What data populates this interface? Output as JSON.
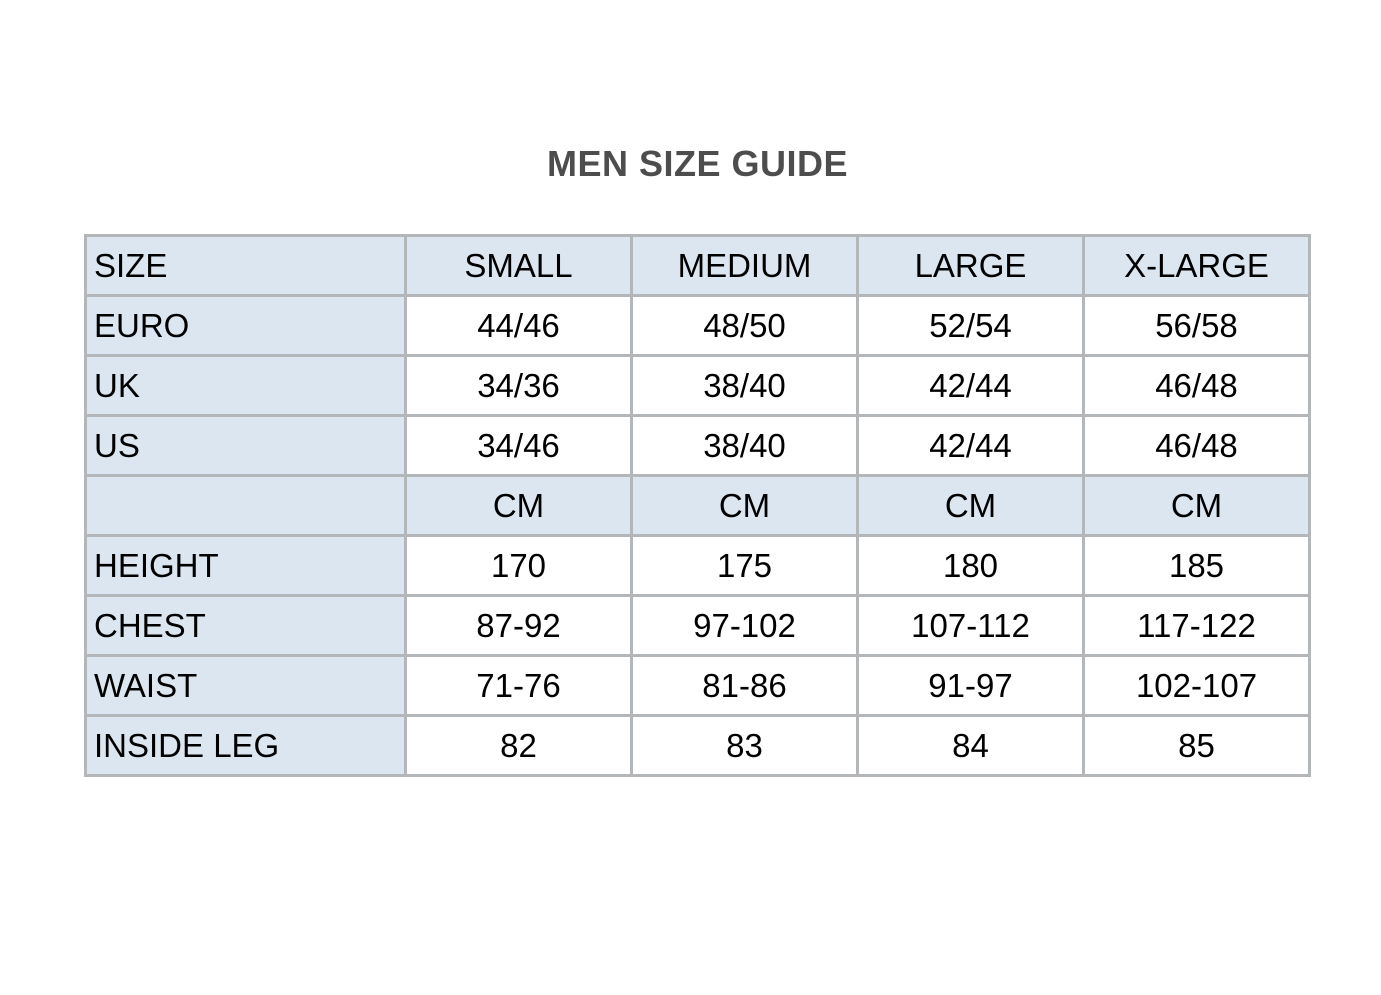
{
  "title": "MEN SIZE GUIDE",
  "table": {
    "header": [
      "SIZE",
      "SMALL",
      "MEDIUM",
      "LARGE",
      "X-LARGE"
    ],
    "rows": [
      {
        "label": "EURO",
        "values": [
          "44/46",
          "48/50",
          "52/54",
          "56/58"
        ]
      },
      {
        "label": "UK",
        "values": [
          "34/36",
          "38/40",
          "42/44",
          "46/48"
        ]
      },
      {
        "label": "US",
        "values": [
          "34/46",
          "38/40",
          "42/44",
          "46/48"
        ]
      },
      {
        "label": "",
        "values": [
          "CM",
          "CM",
          "CM",
          "CM"
        ]
      },
      {
        "label": "HEIGHT",
        "values": [
          "170",
          "175",
          "180",
          "185"
        ]
      },
      {
        "label": "CHEST",
        "values": [
          "87-92",
          "97-102",
          "107-112",
          "117-122"
        ]
      },
      {
        "label": "WAIST",
        "values": [
          "71-76",
          "81-86",
          "91-97",
          "102-107"
        ]
      },
      {
        "label": "INSIDE LEG",
        "values": [
          "82",
          "83",
          "84",
          "85"
        ]
      }
    ]
  },
  "colors": {
    "highlight_bg": "#dce6f1",
    "cell_bg": "#ffffff",
    "border": "#b4b7ba",
    "title_text": "#4d4d4d",
    "cell_text": "#000000"
  }
}
